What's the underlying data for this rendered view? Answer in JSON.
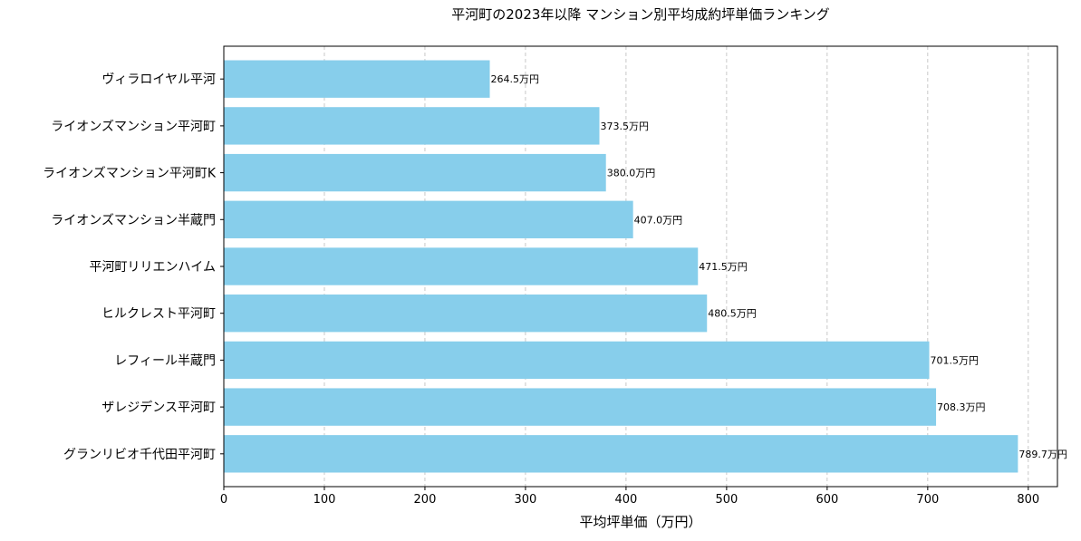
{
  "chart_data": {
    "type": "bar",
    "orientation": "horizontal",
    "title": "平河町の2023年以降 マンション別平均成約坪単価ランキング",
    "xlabel": "平均坪単価（万円）",
    "ylabel": "",
    "xlim": [
      0,
      829
    ],
    "xticks": [
      0,
      100,
      200,
      300,
      400,
      500,
      600,
      700,
      800
    ],
    "grid": "x-dashed",
    "bar_color": "#87ceeb",
    "categories": [
      "ヴィラロイヤル平河",
      "ライオンズマンション平河町",
      "ライオンズマンション平河町K",
      "ライオンズマンション半蔵門",
      "平河町リリエンハイム",
      "ヒルクレスト平河町",
      "レフィール半蔵門",
      "ザレジデンス平河町",
      "グランリビオ千代田平河町"
    ],
    "values": [
      264.5,
      373.5,
      380.0,
      407.0,
      471.5,
      480.5,
      701.5,
      708.3,
      789.7
    ],
    "data_labels": [
      "264.5万円",
      "373.5万円",
      "380.0万円",
      "407.0万円",
      "471.5万円",
      "480.5万円",
      "701.5万円",
      "708.3万円",
      "789.7万円"
    ]
  }
}
